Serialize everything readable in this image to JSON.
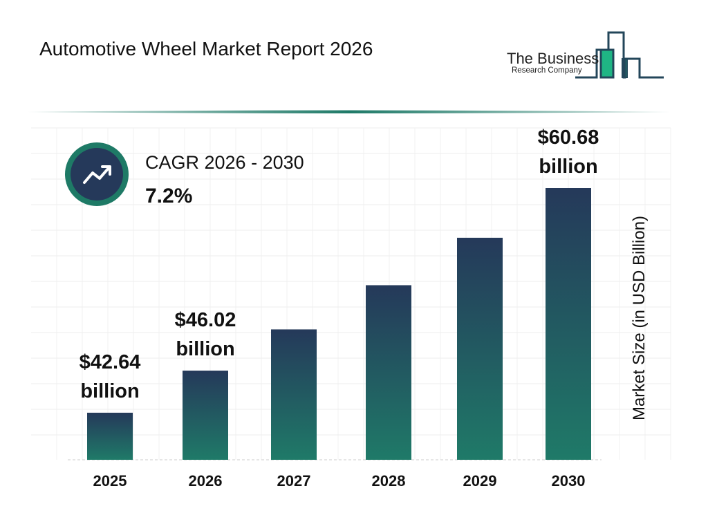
{
  "header": {
    "title": "Automotive Wheel Market Report 2026"
  },
  "logo": {
    "line1": "The Business",
    "line2": "Research Company"
  },
  "cagr": {
    "label": "CAGR 2026 - 2030",
    "value": "7.2%",
    "icon": "trending-up-icon"
  },
  "colors": {
    "bar_top": "#25395a",
    "bar_bottom": "#1f7a68",
    "accent": "#1f7a68"
  },
  "chart_data": {
    "type": "bar",
    "categories": [
      "2025",
      "2026",
      "2027",
      "2028",
      "2029",
      "2030"
    ],
    "values": [
      42.64,
      46.02,
      49.33,
      52.88,
      56.69,
      60.68
    ],
    "data_labels": [
      {
        "index": 0,
        "line1": "$42.64",
        "line2": "billion"
      },
      {
        "index": 1,
        "line1": "$46.02",
        "line2": "billion"
      },
      {
        "index": 5,
        "line1": "$60.68",
        "line2": "billion"
      }
    ],
    "title": "",
    "xlabel": "",
    "ylabel": "Market Size (in USD Billion)",
    "grid": true,
    "legend": "none"
  }
}
